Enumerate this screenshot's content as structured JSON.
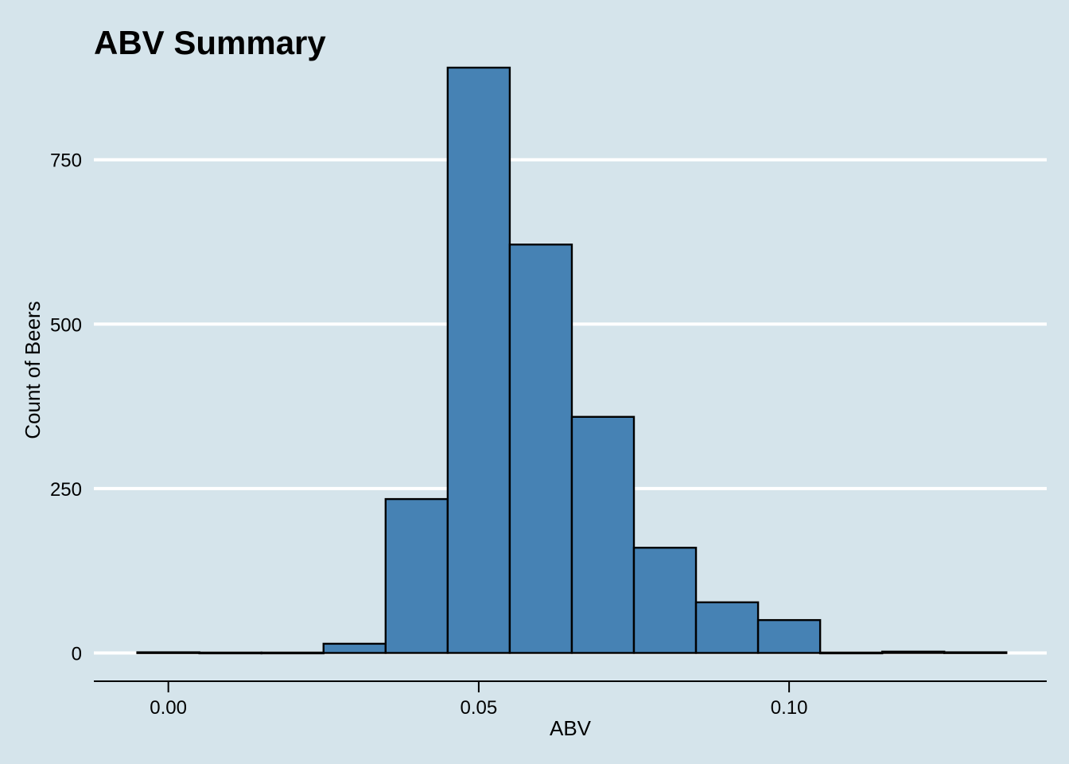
{
  "chart_data": {
    "type": "bar",
    "title": "ABV Summary",
    "xlabel": "ABV",
    "ylabel": "Count of Beers",
    "x_ticks": [
      "0.00",
      "0.05",
      "0.10"
    ],
    "x_tick_values": [
      0.0,
      0.05,
      0.1
    ],
    "y_ticks": [
      "0",
      "250",
      "500",
      "750"
    ],
    "y_tick_values": [
      0,
      250,
      500,
      750
    ],
    "xlim": [
      -0.012,
      0.1415
    ],
    "ylim": [
      -43,
      890
    ],
    "bin_width": 0.01,
    "bin_centers": [
      0.0,
      0.01,
      0.02,
      0.03,
      0.04,
      0.05,
      0.06,
      0.07,
      0.08,
      0.09,
      0.1,
      0.11,
      0.12,
      0.13
    ],
    "values": [
      1,
      0,
      0,
      14,
      234,
      890,
      621,
      359,
      160,
      77,
      50,
      0,
      2,
      1
    ],
    "grid": "horizontal major lines",
    "legend": "none",
    "colors": {
      "background": "#d5e4eb",
      "bar_fill": "#4682b4",
      "bar_stroke": "#000000",
      "grid": "#ffffff",
      "axis": "#000000"
    }
  }
}
